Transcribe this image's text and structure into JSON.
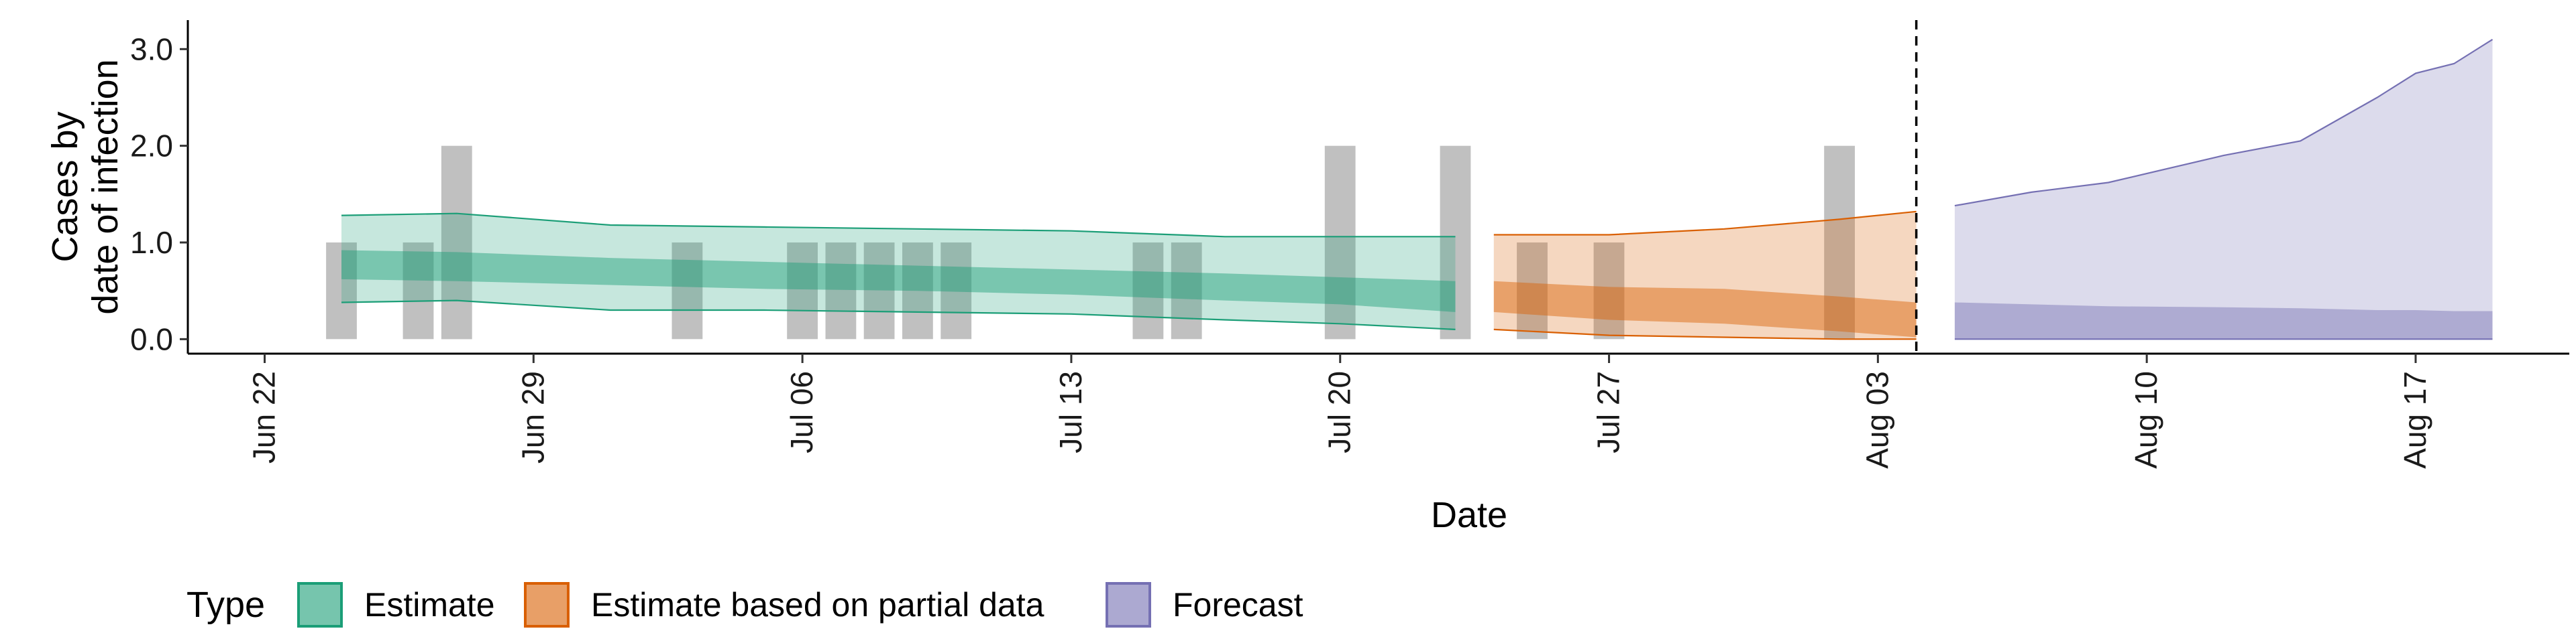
{
  "chart_data": {
    "type": "area",
    "xlabel": "Date",
    "ylabel_lines": [
      "Cases by",
      "date of infection"
    ],
    "x_range": [
      "2020-06-20",
      "2020-08-21"
    ],
    "ylim": [
      -0.15,
      3.3
    ],
    "y_ticks": [
      0.0,
      1.0,
      2.0,
      3.0
    ],
    "y_tick_labels": [
      "0.0",
      "1.0",
      "2.0",
      "3.0"
    ],
    "x_ticks": [
      "2020-06-22",
      "2020-06-29",
      "2020-07-06",
      "2020-07-13",
      "2020-07-20",
      "2020-07-27",
      "2020-08-03",
      "2020-08-10",
      "2020-08-17"
    ],
    "x_tick_labels": [
      "Jun 22",
      "Jun 29",
      "Jul 06",
      "Jul 13",
      "Jul 20",
      "Jul 27",
      "Aug 03",
      "Aug 10",
      "Aug 17"
    ],
    "grid": false,
    "forecast_boundary_date": "2020-08-04",
    "observed_cases": [
      {
        "date": "2020-06-24",
        "value": 1
      },
      {
        "date": "2020-06-26",
        "value": 1
      },
      {
        "date": "2020-06-27",
        "value": 2
      },
      {
        "date": "2020-07-03",
        "value": 1
      },
      {
        "date": "2020-07-06",
        "value": 1
      },
      {
        "date": "2020-07-07",
        "value": 1
      },
      {
        "date": "2020-07-08",
        "value": 1
      },
      {
        "date": "2020-07-09",
        "value": 1
      },
      {
        "date": "2020-07-10",
        "value": 1
      },
      {
        "date": "2020-07-15",
        "value": 1
      },
      {
        "date": "2020-07-16",
        "value": 1
      },
      {
        "date": "2020-07-20",
        "value": 2
      },
      {
        "date": "2020-07-23",
        "value": 2
      },
      {
        "date": "2020-07-25",
        "value": 1
      },
      {
        "date": "2020-07-27",
        "value": 1
      },
      {
        "date": "2020-08-02",
        "value": 2
      }
    ],
    "series": [
      {
        "name": "Estimate",
        "color": "#1b9e77",
        "dates": [
          "2020-06-24",
          "2020-06-27",
          "2020-07-01",
          "2020-07-05",
          "2020-07-09",
          "2020-07-13",
          "2020-07-17",
          "2020-07-20",
          "2020-07-23"
        ],
        "outer_lower": [
          0.38,
          0.4,
          0.3,
          0.3,
          0.28,
          0.26,
          0.2,
          0.16,
          0.1
        ],
        "outer_upper": [
          1.28,
          1.3,
          1.18,
          1.16,
          1.14,
          1.12,
          1.06,
          1.06,
          1.06
        ],
        "inner_lower": [
          0.62,
          0.6,
          0.56,
          0.52,
          0.5,
          0.46,
          0.4,
          0.36,
          0.28
        ],
        "inner_upper": [
          0.92,
          0.9,
          0.84,
          0.8,
          0.76,
          0.72,
          0.68,
          0.64,
          0.6
        ]
      },
      {
        "name": "Estimate based on partial data",
        "color": "#d95f02",
        "dates": [
          "2020-07-24",
          "2020-07-27",
          "2020-07-30",
          "2020-08-02",
          "2020-08-04"
        ],
        "outer_lower": [
          0.1,
          0.04,
          0.02,
          0.0,
          0.0
        ],
        "outer_upper": [
          1.08,
          1.08,
          1.14,
          1.24,
          1.32
        ],
        "inner_lower": [
          0.28,
          0.2,
          0.16,
          0.08,
          0.02
        ],
        "inner_upper": [
          0.6,
          0.54,
          0.52,
          0.44,
          0.38
        ]
      },
      {
        "name": "Forecast",
        "color": "#7570b3",
        "dates": [
          "2020-08-05",
          "2020-08-07",
          "2020-08-09",
          "2020-08-12",
          "2020-08-14",
          "2020-08-16",
          "2020-08-17",
          "2020-08-18",
          "2020-08-19"
        ],
        "outer_lower": [
          0.0,
          0.0,
          0.0,
          0.0,
          0.0,
          0.0,
          0.0,
          0.0,
          0.0
        ],
        "outer_upper": [
          1.38,
          1.52,
          1.62,
          1.9,
          2.05,
          2.5,
          2.75,
          2.85,
          3.1
        ],
        "inner_lower": [
          0.0,
          0.0,
          0.0,
          0.0,
          0.0,
          0.0,
          0.0,
          0.0,
          0.0
        ],
        "inner_upper": [
          0.38,
          0.36,
          0.34,
          0.33,
          0.32,
          0.3,
          0.3,
          0.29,
          0.29
        ]
      }
    ],
    "legend": {
      "title": "Type",
      "position": "bottom-left",
      "items": [
        {
          "label": "Estimate",
          "color": "#1b9e77"
        },
        {
          "label": "Estimate based on partial data",
          "color": "#d95f02"
        },
        {
          "label": "Forecast",
          "color": "#7570b3"
        }
      ]
    }
  }
}
